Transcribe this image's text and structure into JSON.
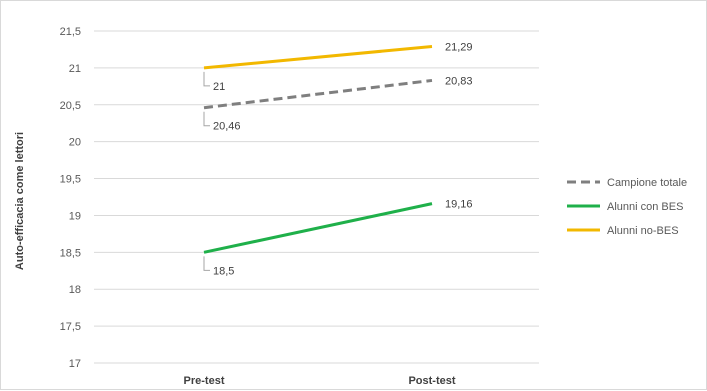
{
  "chart_data": {
    "type": "line",
    "categories": [
      "Pre-test",
      "Post-test"
    ],
    "ylabel": "Auto-efficacia come lettori",
    "ylim": [
      17,
      21.5
    ],
    "yticks": [
      "17",
      "17,5",
      "18",
      "18,5",
      "19",
      "19,5",
      "20",
      "20,5",
      "21",
      "21,5"
    ],
    "grid": true,
    "legend": "right",
    "series": [
      {
        "name": "Campione totale",
        "values": [
          20.46,
          20.83
        ],
        "labels": [
          "20,46",
          "20,83"
        ],
        "color": "#7f7f7f",
        "dash": true
      },
      {
        "name": "Alunni con BES",
        "values": [
          18.5,
          19.16
        ],
        "labels": [
          "18,5",
          "19,16"
        ],
        "color": "#1fb04a",
        "dash": false
      },
      {
        "name": "Alunni no-BES",
        "values": [
          21,
          21.29
        ],
        "labels": [
          "21",
          "21,29"
        ],
        "color": "#f2b800",
        "dash": false
      }
    ]
  }
}
